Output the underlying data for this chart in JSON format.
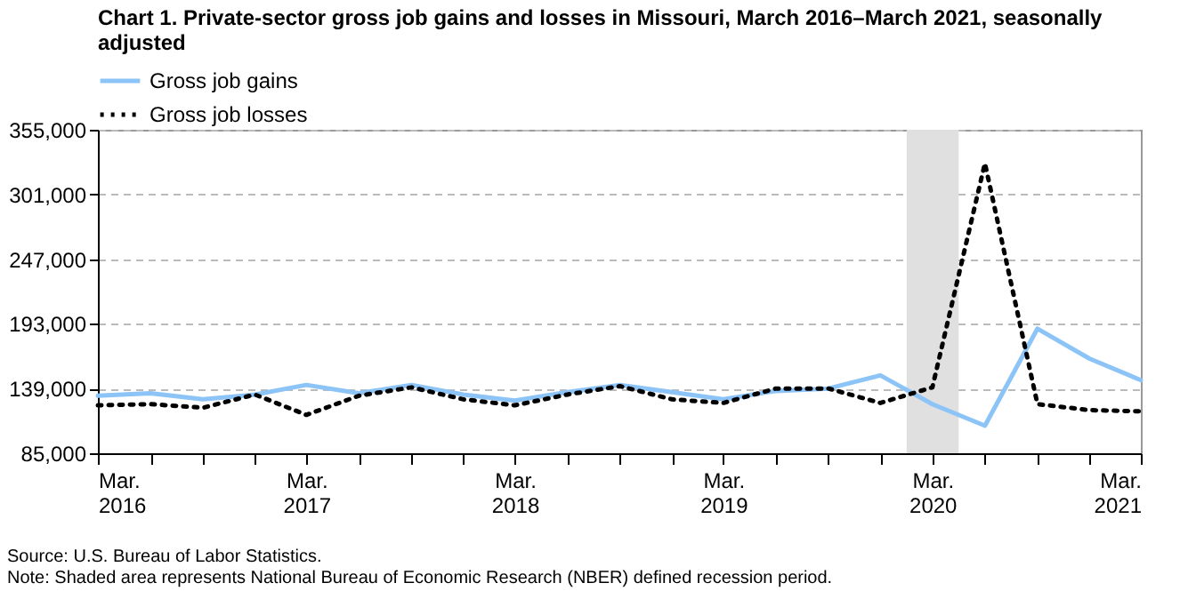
{
  "chart_data": {
    "type": "line",
    "title": "Chart 1. Private-sector gross job gains and losses in Missouri, March 2016–March 2021, seasonally adjusted",
    "x": [
      "2016-03",
      "2016-06",
      "2016-09",
      "2016-12",
      "2017-03",
      "2017-06",
      "2017-09",
      "2017-12",
      "2018-03",
      "2018-06",
      "2018-09",
      "2018-12",
      "2019-03",
      "2019-06",
      "2019-09",
      "2019-12",
      "2020-03",
      "2020-06",
      "2020-09",
      "2020-12",
      "2021-03"
    ],
    "series": [
      {
        "name": "Gross job gains",
        "color": "#8cc4f8",
        "line_style": "solid",
        "values": [
          133000,
          135000,
          130000,
          134000,
          142000,
          135000,
          142000,
          134000,
          129000,
          136000,
          142000,
          136000,
          130000,
          137000,
          139000,
          150000,
          126000,
          108000,
          189000,
          164000,
          146000
        ]
      },
      {
        "name": "Gross job losses",
        "color": "#000000",
        "line_style": "dotted",
        "values": [
          125000,
          126000,
          123000,
          134000,
          117000,
          133000,
          140000,
          130000,
          125000,
          134000,
          141000,
          130000,
          127000,
          139000,
          139000,
          127000,
          140000,
          327000,
          126000,
          121000,
          120000
        ]
      }
    ],
    "xlim": [
      "2016-03",
      "2021-03"
    ],
    "xticks": [
      {
        "value": "2016-03",
        "label": "Mar. 2016"
      },
      {
        "value": "2016-06",
        "label": null
      },
      {
        "value": "2016-09",
        "label": null
      },
      {
        "value": "2016-12",
        "label": null
      },
      {
        "value": "2017-03",
        "label": "Mar. 2017"
      },
      {
        "value": "2017-06",
        "label": null
      },
      {
        "value": "2017-09",
        "label": null
      },
      {
        "value": "2017-12",
        "label": null
      },
      {
        "value": "2018-03",
        "label": "Mar. 2018"
      },
      {
        "value": "2018-06",
        "label": null
      },
      {
        "value": "2018-09",
        "label": null
      },
      {
        "value": "2018-12",
        "label": null
      },
      {
        "value": "2019-03",
        "label": "Mar. 2019"
      },
      {
        "value": "2019-06",
        "label": null
      },
      {
        "value": "2019-09",
        "label": null
      },
      {
        "value": "2019-12",
        "label": null
      },
      {
        "value": "2020-03",
        "label": "Mar. 2020"
      },
      {
        "value": "2020-06",
        "label": null
      },
      {
        "value": "2020-09",
        "label": null
      },
      {
        "value": "2020-12",
        "label": null
      },
      {
        "value": "2021-03",
        "label": "Mar. 2021"
      }
    ],
    "ylim": [
      85000,
      355000
    ],
    "yticks": [
      {
        "value": 85000,
        "label": "85,000"
      },
      {
        "value": 139000,
        "label": "139,000"
      },
      {
        "value": 193000,
        "label": "193,000"
      },
      {
        "value": 247000,
        "label": "247,000"
      },
      {
        "value": 301000,
        "label": "301,000"
      },
      {
        "value": 355000,
        "label": "355,000"
      }
    ],
    "bands": [
      {
        "axis": "x",
        "from": "2020-01-16",
        "to": "2020-04-16",
        "color": "#e0e0e0"
      }
    ],
    "grid": "y",
    "legend": "top",
    "marker": "none",
    "annotations": [
      "Source: U.S. Bureau of Labor Statistics.",
      "Note: Shaded area represents National Bureau of Economic Research (NBER) defined recession period."
    ]
  }
}
